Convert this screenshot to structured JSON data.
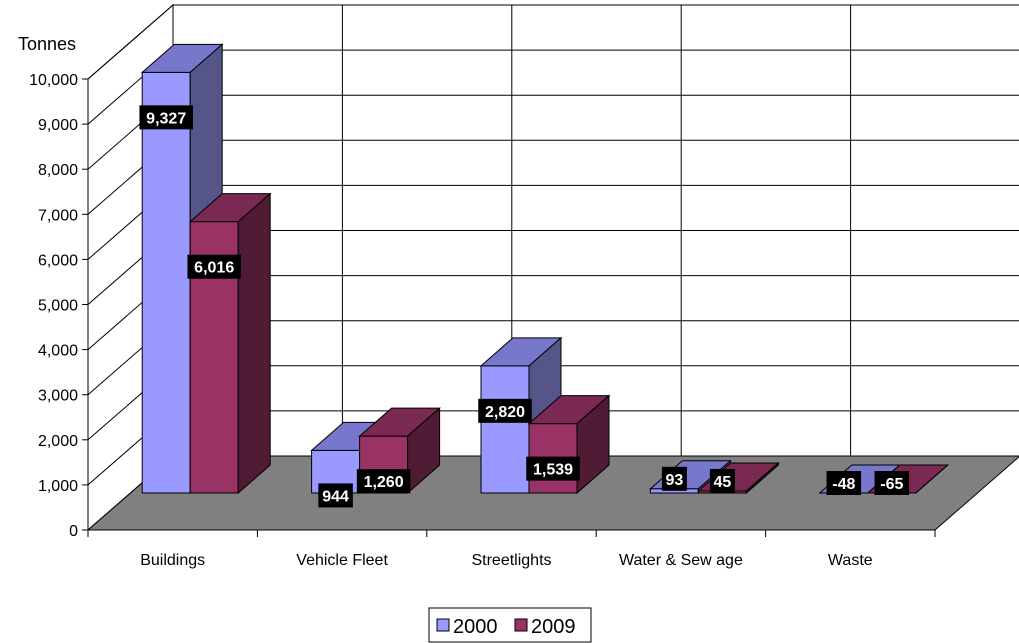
{
  "chart_data": {
    "type": "bar",
    "title": "",
    "xlabel": "",
    "ylabel": "Tonnes",
    "categories": [
      "Buildings",
      "Vehicle Fleet",
      "Streetlights",
      "Water & Sew age",
      "Waste"
    ],
    "series": [
      {
        "name": "2000",
        "values": [
          9327,
          944,
          2820,
          93,
          -48
        ],
        "labels": [
          "9,327",
          "944",
          "2,820",
          "93",
          "-48"
        ]
      },
      {
        "name": "2009",
        "values": [
          6016,
          1260,
          1539,
          45,
          -65
        ],
        "labels": [
          "6,016",
          "1,260",
          "1,539",
          "45",
          "-65"
        ]
      }
    ],
    "ylim": [
      0,
      10000
    ],
    "yticks": [
      0,
      1000,
      2000,
      3000,
      4000,
      5000,
      6000,
      7000,
      8000,
      9000,
      10000
    ],
    "ytick_labels": [
      "0",
      "1,000",
      "2,000",
      "3,000",
      "4,000",
      "5,000",
      "6,000",
      "7,000",
      "8,000",
      "9,000",
      "10,000"
    ],
    "grid": true,
    "legend_position": "bottom-center",
    "style": "3d-clustered-column",
    "colors": {
      "2000": {
        "front": "#9999FF",
        "top": "#7777CC",
        "side": "#55558A"
      },
      "2009": {
        "front": "#993366",
        "top": "#7A2952",
        "side": "#4F1B35"
      },
      "floor": "#808080",
      "label_box": "#000000"
    }
  }
}
